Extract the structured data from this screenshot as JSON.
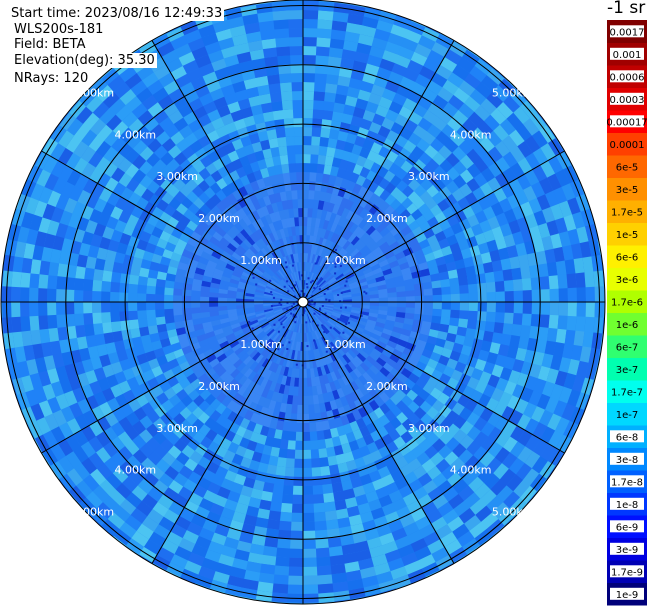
{
  "header": {
    "start_time": "Start time: 2023/08/16 12:49:33",
    "instrument": "WLS200s-181",
    "field": "Field: BETA",
    "elevation": "Elevation(deg): 35.30",
    "nrays": "NRays: 120"
  },
  "colorbar": {
    "unit_label": "-1 sr",
    "ticks": [
      "1e-9",
      "1.7e-9",
      "3e-9",
      "6e-9",
      "1e-8",
      "1.7e-8",
      "3e-8",
      "6e-8",
      "1e-7",
      "1.7e-7",
      "3e-7",
      "6e-7",
      "1e-6",
      "1.7e-6",
      "3e-6",
      "6e-6",
      "1e-5",
      "1.7e-5",
      "3e-5",
      "6e-5",
      "0.0001",
      "0.00017",
      "0.0003",
      "0.0006",
      "0.001",
      "0.0017"
    ],
    "colors": [
      "#00007a",
      "#0000b4",
      "#0000e0",
      "#0010ff",
      "#0038ff",
      "#0060ff",
      "#0088ff",
      "#00b0ff",
      "#00d8ff",
      "#00ffee",
      "#00ffb0",
      "#30ff70",
      "#70ff30",
      "#b0ff00",
      "#e8ff00",
      "#fff000",
      "#ffd000",
      "#ffb000",
      "#ff9000",
      "#ff6800",
      "#ff4000",
      "#ff0000",
      "#e00000",
      "#c00000",
      "#a00000",
      "#800000"
    ],
    "white_tick_labels": [
      "1e-9",
      "1.7e-9",
      "3e-9",
      "6e-9",
      "1e-8",
      "1.7e-8",
      "3e-8",
      "6e-8",
      "0.00017",
      "0.0003",
      "0.0006",
      "0.001",
      "0.0017"
    ]
  },
  "chart_data": {
    "type": "heatmap",
    "projection": "polar (PPI scan)",
    "field": "BETA",
    "n_rays": 120,
    "range_rings_km": [
      1,
      2,
      3,
      4,
      5
    ],
    "range_labels": [
      "1.00km",
      "2.00km",
      "3.00km",
      "4.00km",
      "5.00km"
    ],
    "azimuth_spokes_deg": [
      0,
      30,
      60,
      90,
      120,
      150,
      180,
      210,
      240,
      270,
      300,
      330
    ],
    "max_range_km": 6.5,
    "value_range": [
      1e-09,
      0.0017
    ],
    "dominant_value_range": [
      6e-09,
      3e-08
    ],
    "scale": "log"
  }
}
